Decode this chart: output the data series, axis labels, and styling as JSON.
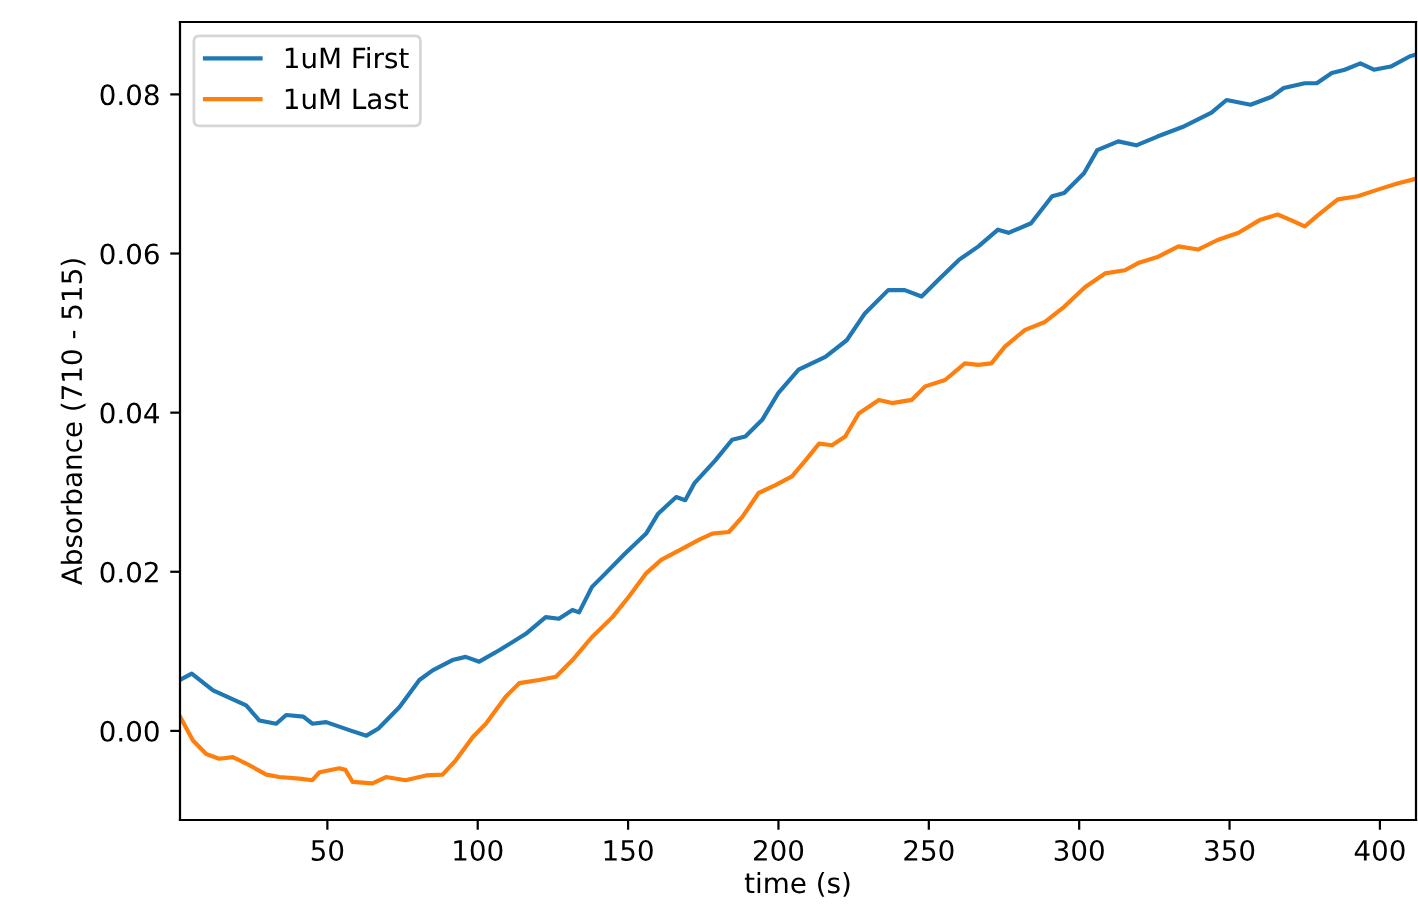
{
  "chart_data": {
    "type": "line",
    "xlabel": "time (s)",
    "ylabel": "Absorbance (710 - 515)",
    "xlim": [
      1,
      412
    ],
    "ylim": [
      -0.0112,
      0.0891
    ],
    "xticks": [
      50,
      100,
      150,
      200,
      250,
      300,
      350,
      400
    ],
    "yticks": [
      {
        "value": 0,
        "label": "0.00"
      },
      {
        "value": 0.02,
        "label": "0.02"
      },
      {
        "value": 0.04,
        "label": "0.04"
      },
      {
        "value": 0.06,
        "label": "0.06"
      },
      {
        "value": 0.08,
        "label": "0.08"
      }
    ],
    "grid": false,
    "legend": "top left",
    "marker": "none",
    "line_style": "solid",
    "series": [
      {
        "name": "1uM First",
        "color": "#1f77b4",
        "x": [
          1,
          4.9,
          12,
          23,
          27.4,
          33,
          36.3,
          42,
          45,
          49.6,
          57.3,
          63,
          67,
          74,
          80.6,
          85,
          91.6,
          96,
          100.5,
          107,
          116,
          122.6,
          127,
          131.5,
          133.7,
          138,
          142.5,
          149,
          156,
          160,
          166,
          169,
          172,
          179,
          184.6,
          189,
          194.6,
          200,
          206.7,
          215.6,
          222.7,
          228.8,
          236.5,
          242,
          247.6,
          253.2,
          260,
          266.5,
          273,
          276.5,
          284,
          291,
          295,
          301.6,
          306,
          313,
          319,
          326,
          335,
          344,
          349,
          357,
          364,
          368,
          375,
          379,
          384,
          388.3,
          393.5,
          398,
          403.6,
          410,
          412
        ],
        "values": [
          0.0064,
          0.0072,
          0.0051,
          0.0032,
          0.0013,
          0.0009,
          0.002,
          0.0018,
          0.0009,
          0.0011,
          0.0001,
          -0.0006,
          0.0003,
          0.003,
          0.0064,
          0.0076,
          0.0089,
          0.0093,
          0.0087,
          0.0101,
          0.0122,
          0.0143,
          0.0141,
          0.0152,
          0.0149,
          0.0181,
          0.0198,
          0.0223,
          0.0248,
          0.0273,
          0.0294,
          0.029,
          0.0311,
          0.034,
          0.0366,
          0.037,
          0.0391,
          0.0425,
          0.0454,
          0.047,
          0.0491,
          0.0525,
          0.0554,
          0.0554,
          0.0546,
          0.0567,
          0.0592,
          0.0609,
          0.063,
          0.0626,
          0.0638,
          0.0672,
          0.0676,
          0.0701,
          0.073,
          0.0741,
          0.0736,
          0.0747,
          0.076,
          0.0777,
          0.0793,
          0.0787,
          0.0797,
          0.0808,
          0.0814,
          0.0814,
          0.0827,
          0.0831,
          0.0839,
          0.0831,
          0.0835,
          0.0848,
          0.085
        ]
      },
      {
        "name": "1uM Last",
        "color": "#ff7f0e",
        "x": [
          1,
          5.3,
          9.7,
          14,
          18.6,
          23,
          29.7,
          34,
          40.7,
          45,
          47.4,
          54,
          56,
          58.4,
          65,
          69.5,
          76,
          82.8,
          88.3,
          92.7,
          98.3,
          102.7,
          109.3,
          113.8,
          120.4,
          126,
          131.5,
          138,
          144.8,
          150.3,
          156,
          161,
          167,
          173.5,
          178,
          183.5,
          188,
          193.4,
          199,
          204.5,
          209,
          213.5,
          217.8,
          222.2,
          226.7,
          233.4,
          237.8,
          244.3,
          248.8,
          255.4,
          262,
          266.4,
          270.8,
          275.3,
          282,
          288.6,
          295,
          302,
          308.6,
          315.2,
          319.6,
          326.3,
          333,
          339.5,
          346,
          353,
          360,
          366,
          370.4,
          375,
          379,
          386,
          392.6,
          399,
          405.8,
          412
        ],
        "values": [
          0.0018,
          -0.0012,
          -0.0029,
          -0.0035,
          -0.0033,
          -0.0041,
          -0.0055,
          -0.0058,
          -0.006,
          -0.0062,
          -0.0052,
          -0.0047,
          -0.0049,
          -0.0064,
          -0.0066,
          -0.0058,
          -0.0062,
          -0.0056,
          -0.0055,
          -0.0037,
          -0.0008,
          0.0009,
          0.0043,
          0.006,
          0.0064,
          0.0068,
          0.0089,
          0.0118,
          0.0143,
          0.0169,
          0.0198,
          0.0215,
          0.0227,
          0.024,
          0.0248,
          0.025,
          0.0269,
          0.0299,
          0.0309,
          0.032,
          0.034,
          0.0361,
          0.0359,
          0.037,
          0.0399,
          0.0416,
          0.0412,
          0.0416,
          0.0433,
          0.0441,
          0.0462,
          0.046,
          0.0462,
          0.0483,
          0.0504,
          0.0514,
          0.0533,
          0.0558,
          0.0575,
          0.0579,
          0.0588,
          0.0596,
          0.0609,
          0.0605,
          0.0617,
          0.0626,
          0.0642,
          0.0649,
          0.0642,
          0.0634,
          0.0647,
          0.0668,
          0.0672,
          0.068,
          0.0688,
          0.0694
        ]
      }
    ]
  }
}
